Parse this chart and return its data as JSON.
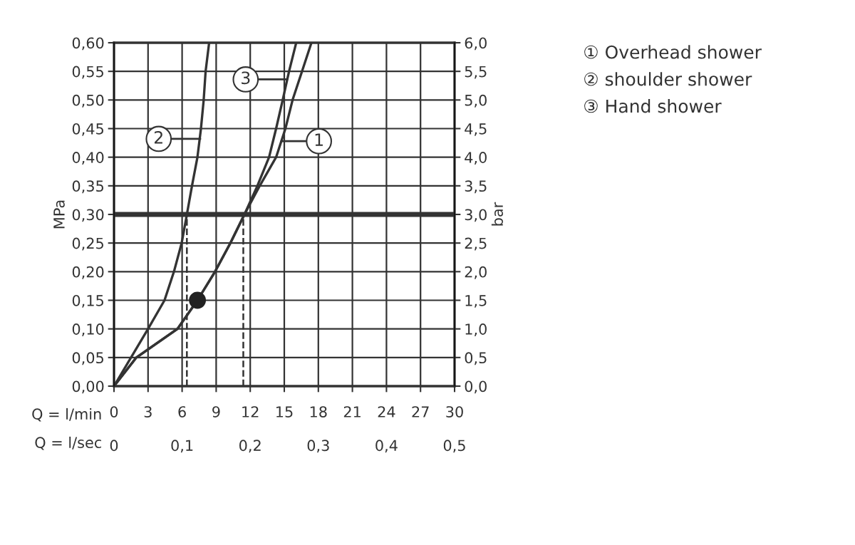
{
  "chart_data": {
    "type": "line",
    "ylabel": "MPa",
    "y2label": "bar",
    "xlabel": "Q = l/min",
    "x2label": "Q = l/sec",
    "xlim": [
      0,
      30
    ],
    "xticks": [
      0,
      3,
      6,
      9,
      12,
      15,
      18,
      21,
      24,
      27,
      30
    ],
    "x2lim": [
      0,
      0.5
    ],
    "x2ticks": [
      0,
      {
        "value": 0.1,
        "label": "0,1"
      },
      {
        "value": 0.2,
        "label": "0,2"
      },
      {
        "value": 0.3,
        "label": "0,3"
      },
      {
        "value": 0.4,
        "label": "0,4"
      },
      {
        "value": 0.5,
        "label": "0,5"
      }
    ],
    "ylim": [
      0,
      0.6
    ],
    "yticks": [
      {
        "value": 0,
        "label": "0,00"
      },
      {
        "value": 0.05,
        "label": "0,05"
      },
      {
        "value": 0.1,
        "label": "0,10"
      },
      {
        "value": 0.15,
        "label": "0,15"
      },
      {
        "value": 0.2,
        "label": "0,20"
      },
      {
        "value": 0.25,
        "label": "0,25"
      },
      {
        "value": 0.3,
        "label": "0,30"
      },
      {
        "value": 0.35,
        "label": "0,35"
      },
      {
        "value": 0.4,
        "label": "0,40"
      },
      {
        "value": 0.45,
        "label": "0,45"
      },
      {
        "value": 0.5,
        "label": "0,50"
      },
      {
        "value": 0.55,
        "label": "0,55"
      },
      {
        "value": 0.6,
        "label": "0,60"
      }
    ],
    "y2lim": [
      0,
      6
    ],
    "y2ticks": [
      {
        "value": 0,
        "label": "0,0"
      },
      {
        "value": 0.5,
        "label": "0,5"
      },
      {
        "value": 1,
        "label": "1,0"
      },
      {
        "value": 1.5,
        "label": "1,5"
      },
      {
        "value": 2,
        "label": "2,0"
      },
      {
        "value": 2.5,
        "label": "2,5"
      },
      {
        "value": 3,
        "label": "3,0"
      },
      {
        "value": 3.5,
        "label": "3,5"
      },
      {
        "value": 4,
        "label": "4,0"
      },
      {
        "value": 4.5,
        "label": "4,5"
      },
      {
        "value": 5,
        "label": "5,0"
      },
      {
        "value": 5.5,
        "label": "5,5"
      },
      {
        "value": 6,
        "label": "6,0"
      }
    ],
    "grid": true,
    "legend": "top right",
    "marker": "none",
    "line_style": "solid",
    "series": [
      {
        "name": "① Overhead shower",
        "color": "#333333",
        "x": [
          0,
          1.97,
          5.59,
          7.35,
          8.9,
          10.25,
          11.49,
          12.84,
          14.28,
          15.1,
          15.73,
          16.56,
          17.39
        ],
        "values": [
          0,
          0.05,
          0.1,
          0.15,
          0.2,
          0.25,
          0.3,
          0.35,
          0.4,
          0.45,
          0.5,
          0.55,
          0.6
        ]
      },
      {
        "name": "② shoulder shower",
        "color": "#333333",
        "x": [
          0,
          3.0,
          4.45,
          5.28,
          5.96,
          6.42,
          6.87,
          7.35,
          7.66,
          7.9,
          8.07,
          8.38
        ],
        "values": [
          0,
          0.1,
          0.15,
          0.2,
          0.25,
          0.3,
          0.35,
          0.4,
          0.45,
          0.5,
          0.55,
          0.6
        ]
      },
      {
        "name": "③ Hand shower",
        "color": "#333333",
        "x": [
          0,
          1.97,
          5.59,
          7.35,
          8.9,
          10.25,
          11.49,
          12.63,
          13.66,
          14.28,
          14.86,
          15.42,
          16.05
        ],
        "values": [
          0,
          0.05,
          0.1,
          0.15,
          0.2,
          0.25,
          0.3,
          0.35,
          0.4,
          0.45,
          0.5,
          0.55,
          0.6
        ]
      },
      {
        "type": "scatter",
        "color": "#222222",
        "marker": "circle",
        "x": [
          7.35
        ],
        "values": [
          0.15
        ]
      }
    ],
    "ref_lines": [
      {
        "axis": "y",
        "value": 0.3,
        "color": "#333333"
      },
      {
        "axis": "x",
        "value": 6.42,
        "color": "#333333",
        "line_style": "dashed"
      },
      {
        "axis": "x",
        "value": 11.39,
        "color": "#333333",
        "line_style": "dashed"
      }
    ],
    "annotations": [
      {
        "text": "2",
        "x": 7.6,
        "y": 0.432
      },
      {
        "text": "3",
        "x": 15.26,
        "y": 0.536
      },
      {
        "text": "1",
        "x": 14.74,
        "y": 0.428
      }
    ]
  }
}
